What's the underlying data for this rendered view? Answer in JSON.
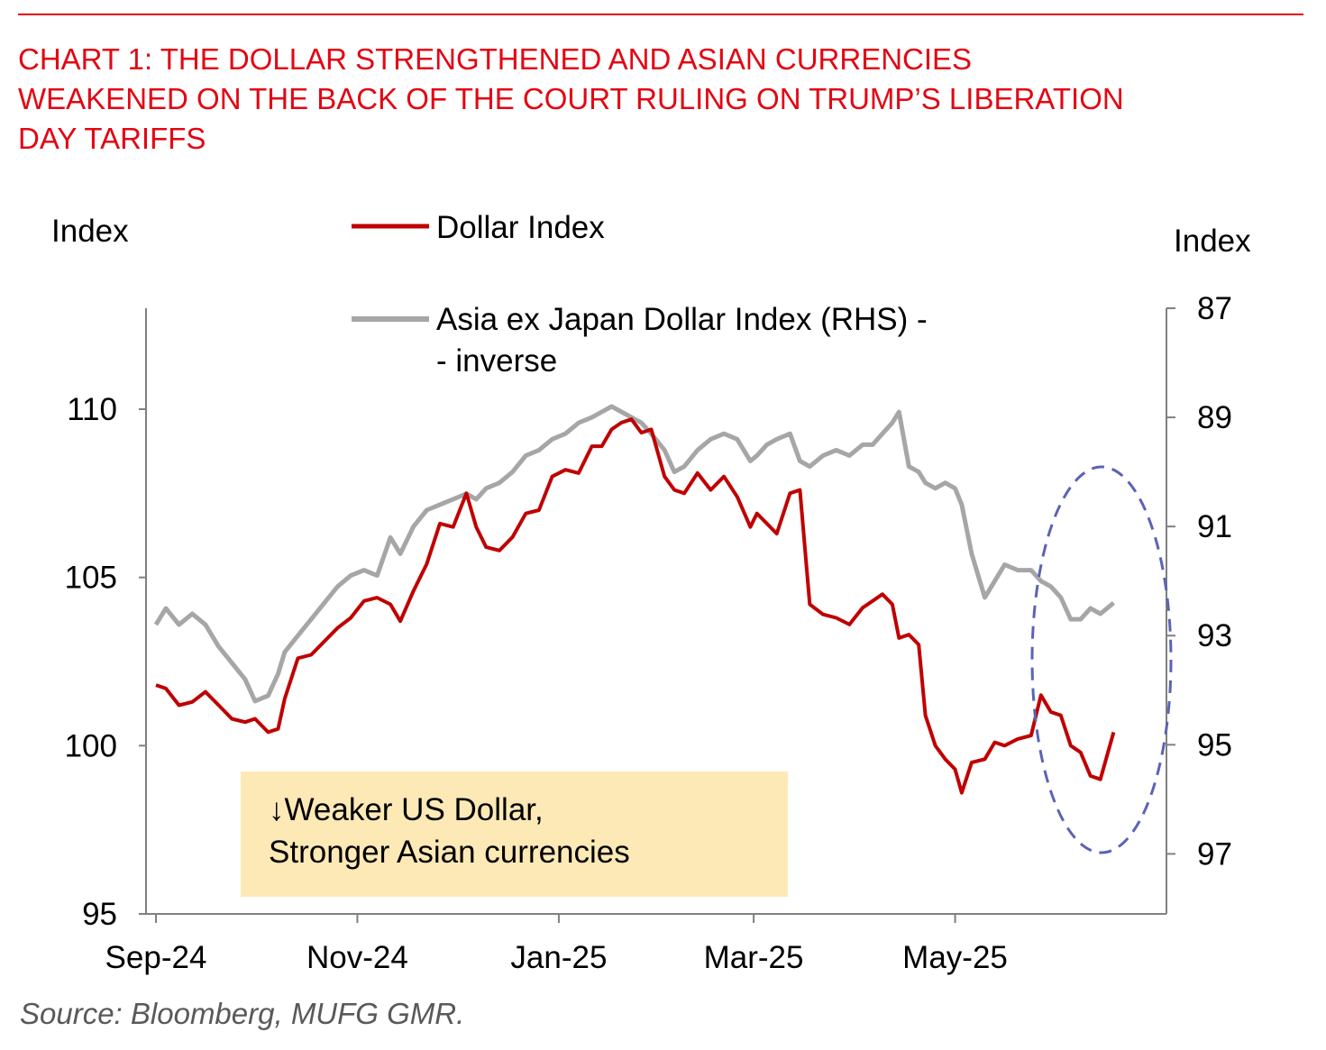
{
  "chart_title": {
    "lines": [
      "CHART 1: THE DOLLAR STRENGTHENED AND ASIAN CURRENCIES",
      "WEAKENED ON THE BACK OF THE COURT RULING ON TRUMP’S LIBERATION",
      "DAY TARIFFS"
    ]
  },
  "source": "Source: Bloomberg, MUFG GMR.",
  "annotation": {
    "line1": "↓Weaker US Dollar,",
    "line2": "Stronger Asian currencies"
  },
  "colors": {
    "title": "#e30613",
    "dollar_index": "#c00000",
    "asia_index": "#a6a6a6",
    "annotation_box": "#fde9b6",
    "highlight_ellipse": "#5b63b5"
  },
  "chart_data": {
    "type": "line",
    "x_tick_labels": [
      "Sep-24",
      "Nov-24",
      "Jan-25",
      "Mar-25",
      "May-25"
    ],
    "x_tick_dates": [
      "2024-09-01",
      "2024-11-01",
      "2025-01-01",
      "2025-03-01",
      "2025-05-01"
    ],
    "left_axis": {
      "label": "Index",
      "ticks": [
        95,
        100,
        105,
        110
      ],
      "range": [
        95,
        113
      ]
    },
    "right_axis": {
      "label": "Index",
      "ticks": [
        87,
        89,
        91,
        93,
        95,
        97
      ],
      "range": [
        87,
        98.1
      ],
      "inverted": true
    },
    "legend": {
      "position": "top-center"
    },
    "grid": false,
    "highlight": "dashed ellipse around late May-25",
    "series": [
      {
        "name": "Dollar Index",
        "axis": "left",
        "color": "#c00000",
        "points": [
          [
            "2024-09-01",
            101.8
          ],
          [
            "2024-09-04",
            101.7
          ],
          [
            "2024-09-08",
            101.2
          ],
          [
            "2024-09-12",
            101.3
          ],
          [
            "2024-09-16",
            101.6
          ],
          [
            "2024-09-20",
            101.2
          ],
          [
            "2024-09-24",
            100.8
          ],
          [
            "2024-09-28",
            100.7
          ],
          [
            "2024-10-01",
            100.8
          ],
          [
            "2024-10-05",
            100.4
          ],
          [
            "2024-10-08",
            100.5
          ],
          [
            "2024-10-10",
            101.4
          ],
          [
            "2024-10-14",
            102.6
          ],
          [
            "2024-10-18",
            102.7
          ],
          [
            "2024-10-22",
            103.1
          ],
          [
            "2024-10-26",
            103.5
          ],
          [
            "2024-10-30",
            103.8
          ],
          [
            "2024-11-03",
            104.3
          ],
          [
            "2024-11-07",
            104.4
          ],
          [
            "2024-11-11",
            104.2
          ],
          [
            "2024-11-14",
            103.7
          ],
          [
            "2024-11-18",
            104.6
          ],
          [
            "2024-11-22",
            105.4
          ],
          [
            "2024-11-26",
            106.6
          ],
          [
            "2024-11-30",
            106.5
          ],
          [
            "2024-12-04",
            107.5
          ],
          [
            "2024-12-07",
            106.5
          ],
          [
            "2024-12-10",
            105.9
          ],
          [
            "2024-12-14",
            105.8
          ],
          [
            "2024-12-18",
            106.2
          ],
          [
            "2024-12-22",
            106.9
          ],
          [
            "2024-12-26",
            107.0
          ],
          [
            "2024-12-30",
            108.0
          ],
          [
            "2025-01-03",
            108.2
          ],
          [
            "2025-01-07",
            108.1
          ],
          [
            "2025-01-11",
            108.9
          ],
          [
            "2025-01-14",
            108.9
          ],
          [
            "2025-01-17",
            109.4
          ],
          [
            "2025-01-20",
            109.6
          ],
          [
            "2025-01-23",
            109.7
          ],
          [
            "2025-01-26",
            109.3
          ],
          [
            "2025-01-29",
            109.4
          ],
          [
            "2025-02-02",
            108.0
          ],
          [
            "2025-02-05",
            107.6
          ],
          [
            "2025-02-08",
            107.5
          ],
          [
            "2025-02-12",
            108.1
          ],
          [
            "2025-02-16",
            107.6
          ],
          [
            "2025-02-20",
            108.0
          ],
          [
            "2025-02-24",
            107.4
          ],
          [
            "2025-02-28",
            106.5
          ],
          [
            "2025-03-02",
            106.9
          ],
          [
            "2025-03-05",
            106.6
          ],
          [
            "2025-03-08",
            106.3
          ],
          [
            "2025-03-12",
            107.5
          ],
          [
            "2025-03-15",
            107.6
          ],
          [
            "2025-03-18",
            104.2
          ],
          [
            "2025-03-22",
            103.9
          ],
          [
            "2025-03-26",
            103.8
          ],
          [
            "2025-03-30",
            103.6
          ],
          [
            "2025-04-03",
            104.1
          ],
          [
            "2025-04-06",
            104.3
          ],
          [
            "2025-04-09",
            104.5
          ],
          [
            "2025-04-12",
            104.2
          ],
          [
            "2025-04-14",
            103.2
          ],
          [
            "2025-04-17",
            103.3
          ],
          [
            "2025-04-20",
            103.0
          ],
          [
            "2025-04-22",
            100.9
          ],
          [
            "2025-04-25",
            100.0
          ],
          [
            "2025-04-28",
            99.6
          ],
          [
            "2025-05-01",
            99.3
          ],
          [
            "2025-05-03",
            98.6
          ],
          [
            "2025-05-06",
            99.5
          ],
          [
            "2025-05-10",
            99.6
          ],
          [
            "2025-05-13",
            100.1
          ],
          [
            "2025-05-16",
            100.0
          ],
          [
            "2025-05-20",
            100.2
          ],
          [
            "2025-05-24",
            100.3
          ],
          [
            "2025-05-27",
            101.5
          ],
          [
            "2025-05-30",
            101.0
          ],
          [
            "2025-06-02",
            100.9
          ],
          [
            "2025-06-05",
            100.0
          ],
          [
            "2025-06-08",
            99.8
          ],
          [
            "2025-06-11",
            99.1
          ],
          [
            "2025-06-14",
            99.0
          ],
          [
            "2025-06-18",
            100.4
          ]
        ]
      },
      {
        "name": "Asia ex Japan Dollar Index (RHS) - inverse",
        "axis": "right",
        "color": "#a6a6a6",
        "points": [
          [
            "2024-09-01",
            92.8
          ],
          [
            "2024-09-04",
            92.5
          ],
          [
            "2024-09-08",
            92.8
          ],
          [
            "2024-09-12",
            92.6
          ],
          [
            "2024-09-16",
            92.8
          ],
          [
            "2024-09-20",
            93.2
          ],
          [
            "2024-09-24",
            93.5
          ],
          [
            "2024-09-28",
            93.8
          ],
          [
            "2024-10-01",
            94.2
          ],
          [
            "2024-10-05",
            94.1
          ],
          [
            "2024-10-08",
            93.7
          ],
          [
            "2024-10-10",
            93.3
          ],
          [
            "2024-10-14",
            93.0
          ],
          [
            "2024-10-18",
            92.7
          ],
          [
            "2024-10-22",
            92.4
          ],
          [
            "2024-10-26",
            92.1
          ],
          [
            "2024-10-30",
            91.9
          ],
          [
            "2024-11-03",
            91.8
          ],
          [
            "2024-11-07",
            91.9
          ],
          [
            "2024-11-11",
            91.2
          ],
          [
            "2024-11-14",
            91.5
          ],
          [
            "2024-11-18",
            91.0
          ],
          [
            "2024-11-22",
            90.7
          ],
          [
            "2024-11-26",
            90.6
          ],
          [
            "2024-11-30",
            90.5
          ],
          [
            "2024-12-04",
            90.4
          ],
          [
            "2024-12-07",
            90.5
          ],
          [
            "2024-12-10",
            90.3
          ],
          [
            "2024-12-14",
            90.2
          ],
          [
            "2024-12-18",
            90.0
          ],
          [
            "2024-12-22",
            89.7
          ],
          [
            "2024-12-26",
            89.6
          ],
          [
            "2024-12-30",
            89.4
          ],
          [
            "2025-01-03",
            89.3
          ],
          [
            "2025-01-07",
            89.1
          ],
          [
            "2025-01-11",
            89.0
          ],
          [
            "2025-01-14",
            88.9
          ],
          [
            "2025-01-17",
            88.8
          ],
          [
            "2025-01-20",
            88.9
          ],
          [
            "2025-01-23",
            89.0
          ],
          [
            "2025-01-26",
            89.1
          ],
          [
            "2025-01-29",
            89.3
          ],
          [
            "2025-02-02",
            89.6
          ],
          [
            "2025-02-05",
            90.0
          ],
          [
            "2025-02-08",
            89.9
          ],
          [
            "2025-02-12",
            89.6
          ],
          [
            "2025-02-16",
            89.4
          ],
          [
            "2025-02-20",
            89.3
          ],
          [
            "2025-02-24",
            89.4
          ],
          [
            "2025-02-28",
            89.8
          ],
          [
            "2025-03-02",
            89.7
          ],
          [
            "2025-03-05",
            89.5
          ],
          [
            "2025-03-08",
            89.4
          ],
          [
            "2025-03-12",
            89.3
          ],
          [
            "2025-03-15",
            89.8
          ],
          [
            "2025-03-18",
            89.9
          ],
          [
            "2025-03-22",
            89.7
          ],
          [
            "2025-03-26",
            89.6
          ],
          [
            "2025-03-30",
            89.7
          ],
          [
            "2025-04-03",
            89.5
          ],
          [
            "2025-04-06",
            89.5
          ],
          [
            "2025-04-09",
            89.3
          ],
          [
            "2025-04-12",
            89.1
          ],
          [
            "2025-04-14",
            88.9
          ],
          [
            "2025-04-17",
            89.9
          ],
          [
            "2025-04-20",
            90.0
          ],
          [
            "2025-04-22",
            90.2
          ],
          [
            "2025-04-25",
            90.3
          ],
          [
            "2025-04-28",
            90.2
          ],
          [
            "2025-05-01",
            90.3
          ],
          [
            "2025-05-03",
            90.6
          ],
          [
            "2025-05-06",
            91.5
          ],
          [
            "2025-05-10",
            92.3
          ],
          [
            "2025-05-13",
            92.0
          ],
          [
            "2025-05-16",
            91.7
          ],
          [
            "2025-05-20",
            91.8
          ],
          [
            "2025-05-24",
            91.8
          ],
          [
            "2025-05-27",
            92.0
          ],
          [
            "2025-05-30",
            92.1
          ],
          [
            "2025-06-02",
            92.3
          ],
          [
            "2025-06-05",
            92.7
          ],
          [
            "2025-06-08",
            92.7
          ],
          [
            "2025-06-11",
            92.5
          ],
          [
            "2025-06-14",
            92.6
          ],
          [
            "2025-06-18",
            92.4
          ]
        ]
      }
    ]
  }
}
